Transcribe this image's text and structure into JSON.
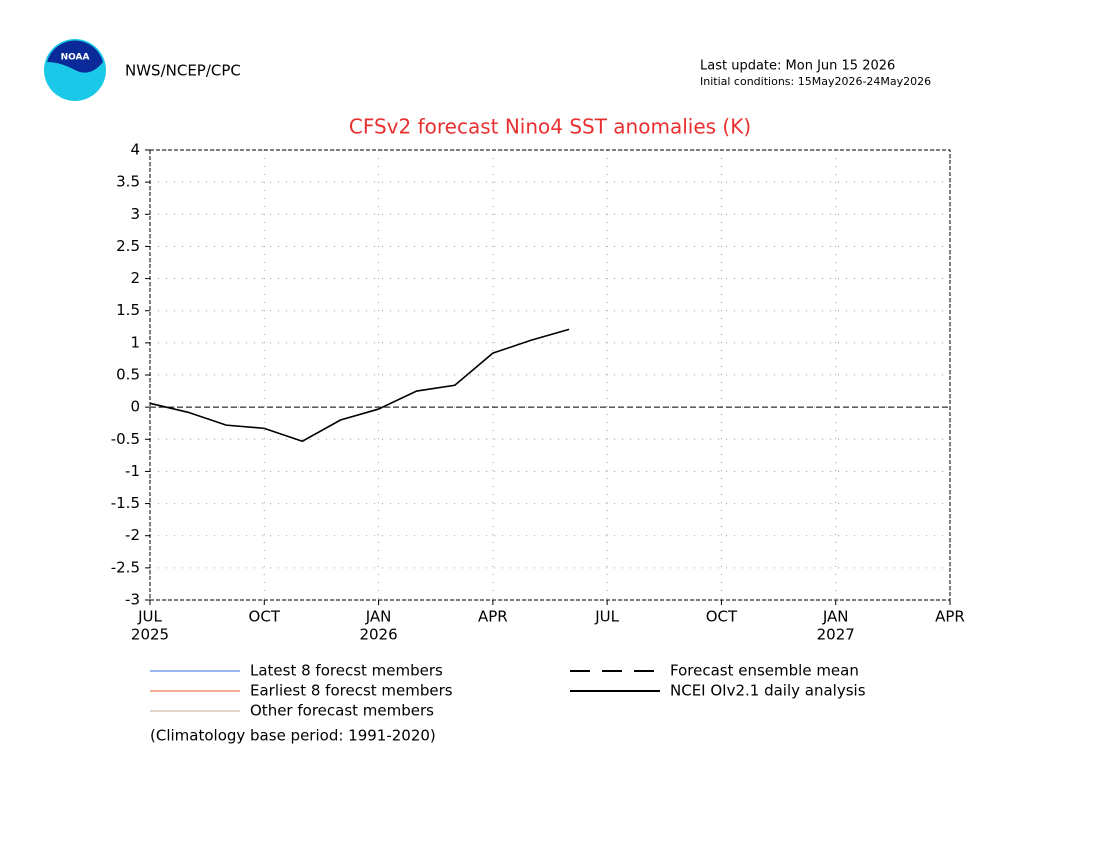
{
  "header": {
    "agency": "NWS/NCEP/CPC",
    "logo_text": "NOAA",
    "last_update": "Last update: Mon Jun 15 2026",
    "initial_conditions": "Initial conditions: 15May2026-24May2026"
  },
  "chart_data": {
    "type": "line",
    "title": "CFSv2 forecast Nino4 SST anomalies (K)",
    "x": [
      "2025-07",
      "2025-08",
      "2025-09",
      "2025-10",
      "2025-11",
      "2025-12",
      "2026-01",
      "2026-02",
      "2026-03",
      "2026-04",
      "2026-05",
      "2026-06"
    ],
    "series": [
      {
        "name": "NCEI OIv2.1 daily analysis",
        "color": "#000000",
        "values": [
          0.06,
          -0.08,
          -0.28,
          -0.33,
          -0.53,
          -0.2,
          -0.03,
          0.25,
          0.34,
          0.84,
          1.04,
          1.21
        ]
      }
    ],
    "xlim": [
      "2025-07",
      "2027-04"
    ],
    "xticks": [
      {
        "value": "2025-07",
        "label": "JUL",
        "year": "2025"
      },
      {
        "value": "2025-10",
        "label": "OCT"
      },
      {
        "value": "2026-01",
        "label": "JAN",
        "year": "2026"
      },
      {
        "value": "2026-04",
        "label": "APR"
      },
      {
        "value": "2026-07",
        "label": "JUL"
      },
      {
        "value": "2026-10",
        "label": "OCT"
      },
      {
        "value": "2027-01",
        "label": "JAN",
        "year": "2027"
      },
      {
        "value": "2027-04",
        "label": "APR"
      }
    ],
    "ylim": [
      -3,
      4
    ],
    "yticks": [
      -3,
      -2.5,
      -2,
      -1.5,
      -1,
      -0.5,
      0,
      0.5,
      1,
      1.5,
      2,
      2.5,
      3,
      3.5,
      4
    ],
    "grid": true,
    "zero_line": true,
    "legend": [
      {
        "name": "Latest 8 forecst members",
        "color": "#3a6fd8",
        "style": "solid",
        "width": 1
      },
      {
        "name": "Earliest 8 forecst members",
        "color": "#e8622a",
        "style": "solid",
        "width": 1
      },
      {
        "name": "Other forecast members",
        "color": "#c8a898",
        "style": "solid",
        "width": 1
      },
      {
        "name": "Forecast ensemble mean",
        "color": "#000000",
        "style": "dashed",
        "width": 2
      },
      {
        "name": "NCEI OIv2.1 daily analysis",
        "color": "#000000",
        "style": "solid",
        "width": 2
      }
    ],
    "note": "(Climatology base period: 1991-2020)"
  }
}
